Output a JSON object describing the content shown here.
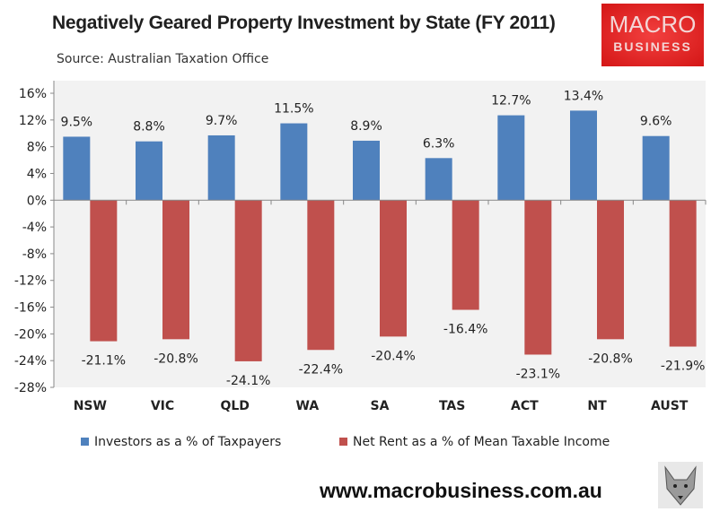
{
  "chart_data": {
    "type": "bar",
    "title": "Negatively Geared Property Investment  by State (FY 2011)",
    "subtitle": "Source: Australian Taxation Office",
    "categories": [
      "NSW",
      "VIC",
      "QLD",
      "WA",
      "SA",
      "TAS",
      "ACT",
      "NT",
      "AUST"
    ],
    "series": [
      {
        "name": "Investors as a % of Taxpayers",
        "color": "#4f81bd",
        "values": [
          9.5,
          8.8,
          9.7,
          11.5,
          8.9,
          6.3,
          12.7,
          13.4,
          9.6
        ],
        "labels": [
          "9.5%",
          "8.8%",
          "9.7%",
          "11.5%",
          "8.9%",
          "6.3%",
          "12.7%",
          "13.4%",
          "9.6%"
        ]
      },
      {
        "name": "Net Rent as a % of Mean Taxable Income",
        "color": "#c0504d",
        "values": [
          -21.1,
          -20.8,
          -24.1,
          -22.4,
          -20.4,
          -16.4,
          -23.1,
          -20.8,
          -21.9
        ],
        "labels": [
          "-21.1%",
          "-20.8%",
          "-24.1%",
          "-22.4%",
          "-20.4%",
          "-16.4%",
          "-23.1%",
          "-20.8%",
          "-21.9%"
        ]
      }
    ],
    "ylim": [
      -28,
      16
    ],
    "yticks": [
      "16%",
      "12%",
      "8%",
      "4%",
      "0%",
      "-4%",
      "-8%",
      "-12%",
      "-16%",
      "-20%",
      "-24%",
      "-28%"
    ],
    "grid": false,
    "legend": "bottom",
    "plot_background": "#f2f2f2"
  },
  "logo": {
    "line1": "MACRO",
    "line2": "BUSINESS"
  },
  "footer": {
    "url": "www.macrobusiness.com.au"
  }
}
